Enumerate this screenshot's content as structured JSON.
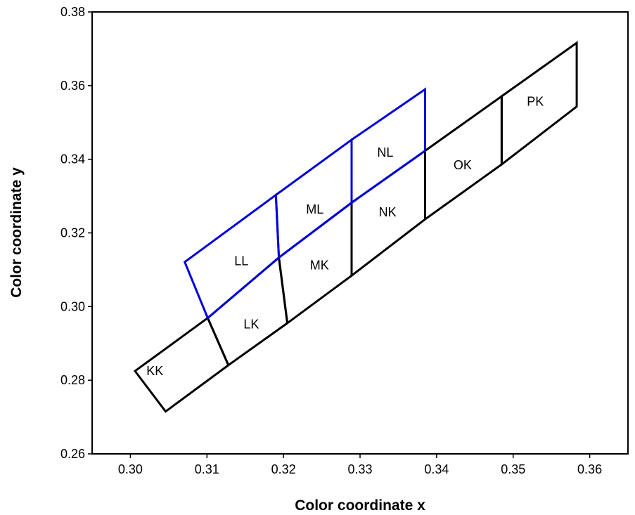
{
  "chart_data": {
    "type": "line",
    "xlabel": "Color coordinate x",
    "ylabel": "Color coordinate y",
    "xlim": [
      0.295,
      0.365
    ],
    "ylim": [
      0.26,
      0.38
    ],
    "x_ticks": [
      "0.30",
      "0.31",
      "0.32",
      "0.33",
      "0.34",
      "0.35",
      "0.36"
    ],
    "y_ticks": [
      "0.26",
      "0.28",
      "0.30",
      "0.32",
      "0.34",
      "0.36",
      "0.38"
    ],
    "grid": false,
    "colors": {
      "K_bins": "#000000",
      "L_bins": "#0000dd"
    },
    "bins": [
      {
        "label": "KK",
        "color": "#000000",
        "label_at": [
          0.3032,
          0.2825
        ],
        "vertices": [
          [
            0.3006,
            0.2825
          ],
          [
            0.3101,
            0.2969
          ],
          [
            0.3128,
            0.2841
          ],
          [
            0.3046,
            0.2715
          ]
        ]
      },
      {
        "label": "LK",
        "color": "#000000",
        "label_at": [
          0.3158,
          0.2952
        ],
        "vertices": [
          [
            0.3101,
            0.2969
          ],
          [
            0.3194,
            0.3133
          ],
          [
            0.3205,
            0.2955
          ],
          [
            0.3128,
            0.2841
          ]
        ]
      },
      {
        "label": "MK",
        "color": "#000000",
        "label_at": [
          0.3247,
          0.3112
        ],
        "vertices": [
          [
            0.3194,
            0.3133
          ],
          [
            0.3289,
            0.3282
          ],
          [
            0.3289,
            0.3084
          ],
          [
            0.3205,
            0.2955
          ]
        ]
      },
      {
        "label": "NK",
        "color": "#000000",
        "label_at": [
          0.3336,
          0.3256
        ],
        "vertices": [
          [
            0.3289,
            0.3282
          ],
          [
            0.3385,
            0.3423
          ],
          [
            0.3385,
            0.3237
          ],
          [
            0.3289,
            0.3084
          ]
        ]
      },
      {
        "label": "OK",
        "color": "#000000",
        "label_at": [
          0.3434,
          0.3384
        ],
        "vertices": [
          [
            0.3385,
            0.3423
          ],
          [
            0.3485,
            0.3571
          ],
          [
            0.3485,
            0.3386
          ],
          [
            0.3385,
            0.3237
          ]
        ]
      },
      {
        "label": "PK",
        "color": "#000000",
        "label_at": [
          0.3529,
          0.3557
        ],
        "vertices": [
          [
            0.3485,
            0.3571
          ],
          [
            0.3583,
            0.3716
          ],
          [
            0.3583,
            0.3543
          ],
          [
            0.3485,
            0.3386
          ]
        ]
      },
      {
        "label": "LL",
        "color": "#0000dd",
        "label_at": [
          0.3145,
          0.3124
        ],
        "vertices": [
          [
            0.3071,
            0.3121
          ],
          [
            0.319,
            0.3303
          ],
          [
            0.3194,
            0.3133
          ],
          [
            0.3101,
            0.2969
          ]
        ]
      },
      {
        "label": "ML",
        "color": "#0000dd",
        "label_at": [
          0.3241,
          0.3264
        ],
        "vertices": [
          [
            0.319,
            0.3303
          ],
          [
            0.3289,
            0.3453
          ],
          [
            0.3289,
            0.3282
          ],
          [
            0.3194,
            0.3133
          ]
        ]
      },
      {
        "label": "NL",
        "color": "#0000dd",
        "label_at": [
          0.3333,
          0.3418
        ],
        "vertices": [
          [
            0.3289,
            0.3453
          ],
          [
            0.3385,
            0.359
          ],
          [
            0.3385,
            0.3423
          ],
          [
            0.3289,
            0.3282
          ]
        ]
      }
    ]
  }
}
